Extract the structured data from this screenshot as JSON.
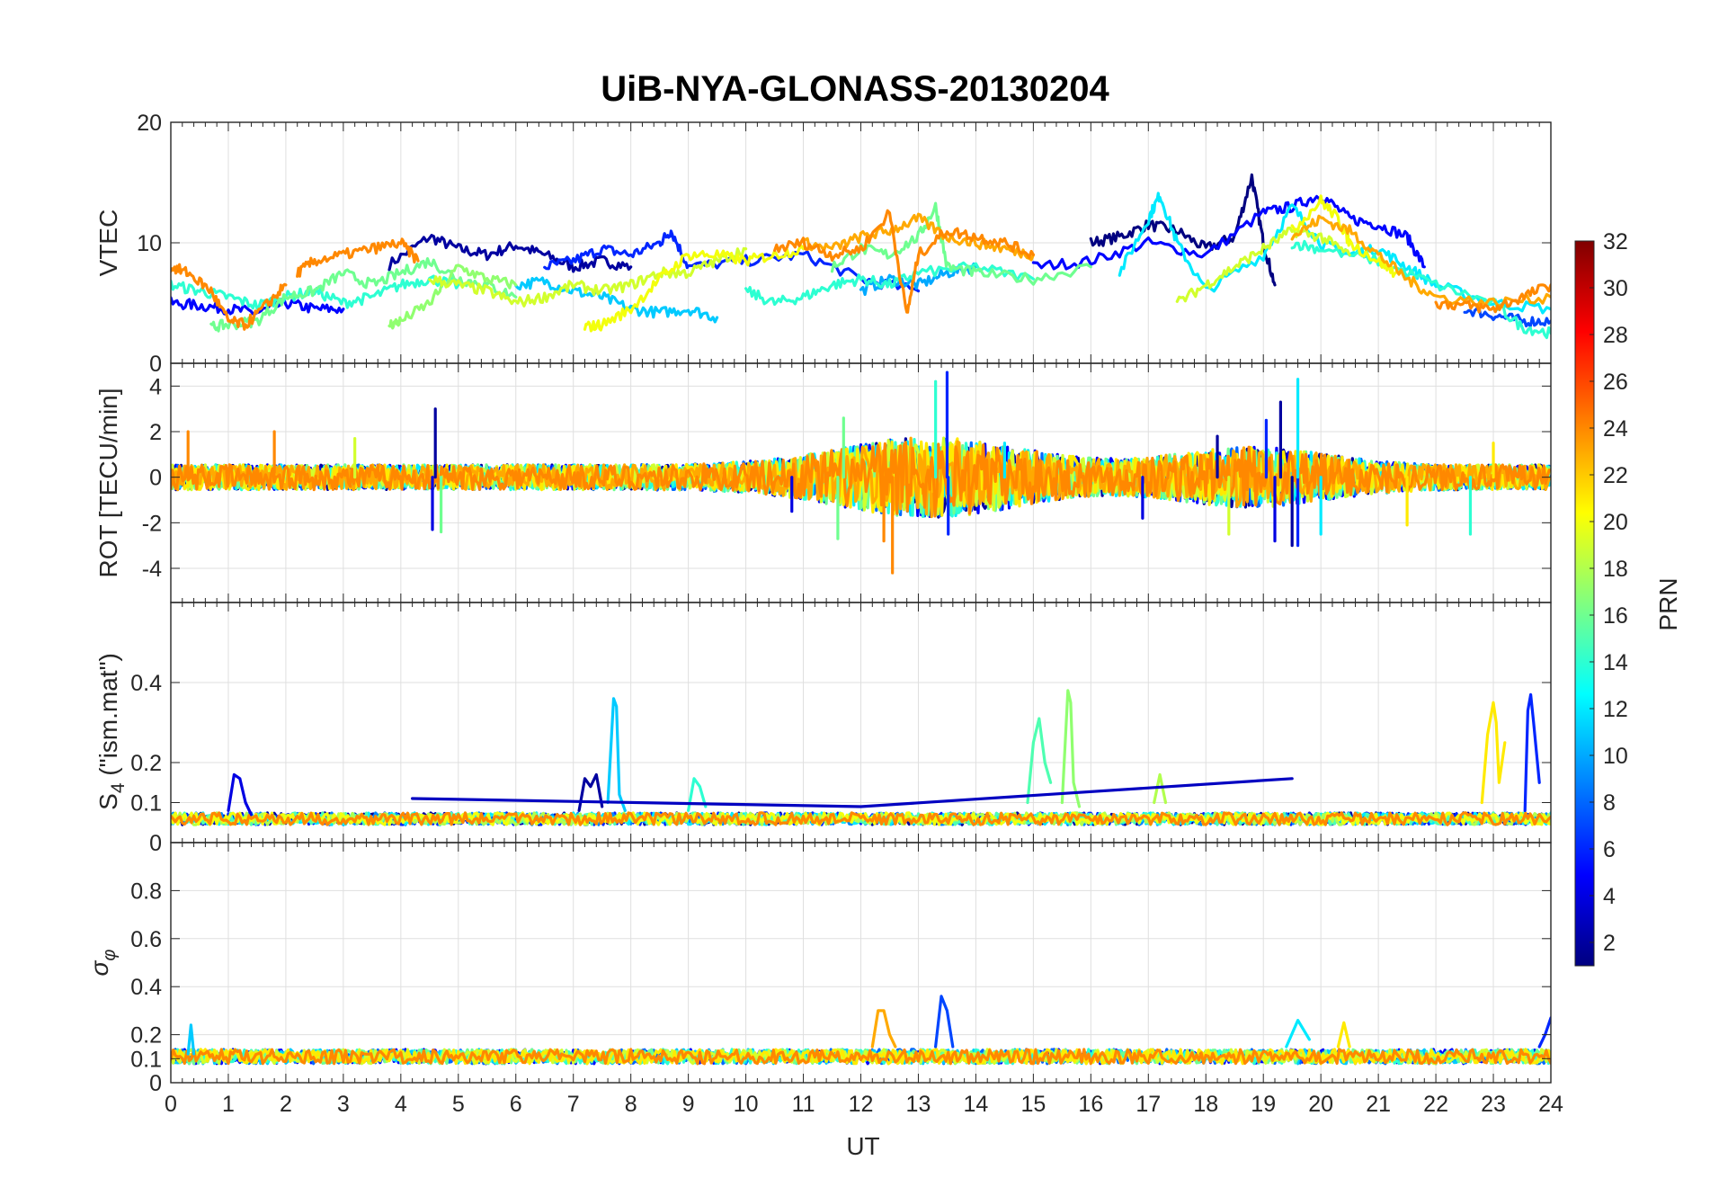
{
  "chart_data": {
    "type": "line",
    "title": "UiB-NYA-GLONASS-20130204",
    "xlabel": "UT",
    "xlim": [
      0,
      24
    ],
    "xticks": [
      0,
      1,
      2,
      3,
      4,
      5,
      6,
      7,
      8,
      9,
      10,
      11,
      12,
      13,
      14,
      15,
      16,
      17,
      18,
      19,
      20,
      21,
      22,
      23,
      24
    ],
    "grid": true,
    "colorbar": {
      "label": "PRN",
      "lim": [
        1,
        32
      ],
      "ticks": [
        2,
        4,
        6,
        8,
        10,
        12,
        14,
        16,
        18,
        20,
        22,
        24,
        26,
        28,
        30,
        32
      ],
      "colormap": "jet"
    },
    "panels": [
      {
        "id": "vtec",
        "ylabel": "VTEC",
        "ylim": [
          0,
          20
        ],
        "yticks": [
          0,
          10,
          20
        ],
        "series": [
          {
            "prn": 2,
            "x": [
              3.8,
              4.5,
              5.0,
              5.5,
              6.0,
              6.5,
              7.0,
              7.5,
              8.0
            ],
            "y": [
              8.2,
              10.5,
              9.5,
              9.0,
              9.8,
              9.0,
              8.0,
              8.5,
              8.0
            ]
          },
          {
            "prn": 1,
            "x": [
              16.0,
              16.5,
              17.0,
              17.5,
              18.0,
              18.5,
              18.8,
              19.0,
              19.2
            ],
            "y": [
              10.0,
              10.5,
              11.5,
              11.0,
              9.5,
              10.5,
              15.5,
              10.0,
              6.5
            ]
          },
          {
            "prn": 5,
            "x": [
              0.0,
              0.5,
              1.0,
              1.5,
              2.0,
              2.5,
              3.0
            ],
            "y": [
              5.0,
              4.8,
              4.5,
              4.2,
              5.0,
              4.5,
              4.5
            ]
          },
          {
            "prn": 5,
            "x": [
              15.0,
              16.0,
              17.0,
              18.0,
              19.0,
              19.5,
              20.0,
              20.5,
              21.0,
              21.5,
              21.8
            ],
            "y": [
              8.0,
              8.5,
              10.0,
              9.0,
              12.5,
              13.0,
              14.0,
              12.0,
              11.5,
              10.5,
              8.0
            ]
          },
          {
            "prn": 6,
            "x": [
              6.5,
              7.0,
              7.5,
              8.0,
              8.5,
              8.7,
              9.0,
              10.0,
              11.0,
              12.0,
              13.0
            ],
            "y": [
              8.0,
              8.5,
              9.5,
              9.0,
              10.0,
              11.0,
              8.0,
              8.5,
              9.0,
              7.0,
              6.0
            ]
          },
          {
            "prn": 7,
            "x": [
              22.5,
              23.0,
              23.5,
              24.0
            ],
            "y": [
              4.5,
              4.0,
              3.5,
              3.5
            ]
          },
          {
            "prn": 10,
            "x": [
              12.0,
              12.5,
              13.0,
              13.5,
              14.0
            ],
            "y": [
              6.0,
              7.0,
              6.5,
              7.5,
              8.0
            ]
          },
          {
            "prn": 11,
            "x": [
              6.0,
              6.5,
              7.0,
              7.5,
              8.0,
              8.5,
              9.0,
              9.5
            ],
            "y": [
              6.5,
              6.8,
              6.0,
              5.5,
              4.5,
              4.2,
              4.5,
              3.8
            ]
          },
          {
            "prn": 12,
            "x": [
              16.5,
              17.0,
              17.2,
              17.5,
              18.0,
              19.0,
              19.5,
              20.0,
              20.5,
              21.0,
              21.5,
              22.0,
              23.0,
              24.0
            ],
            "y": [
              7.5,
              12.0,
              14.0,
              10.0,
              6.0,
              9.0,
              13.0,
              10.0,
              9.0,
              9.5,
              8.0,
              6.5,
              5.0,
              4.5
            ]
          },
          {
            "prn": 14,
            "x": [
              0.0,
              0.5,
              1.0,
              1.5,
              2.0,
              2.5,
              3.0,
              3.5,
              4.0,
              4.5,
              5.0
            ],
            "y": [
              6.5,
              6.0,
              5.5,
              4.8,
              5.5,
              6.0,
              5.0,
              5.5,
              6.5,
              7.0,
              6.5
            ]
          },
          {
            "prn": 14,
            "x": [
              10.0,
              10.5,
              11.0,
              11.5,
              12.0,
              12.5,
              13.0,
              14.0,
              15.0
            ],
            "y": [
              6.0,
              5.0,
              5.5,
              6.5,
              7.0,
              6.5,
              7.5,
              8.0,
              7.0
            ]
          },
          {
            "prn": 14,
            "x": [
              19.5,
              20.0,
              21.0,
              22.0,
              23.0,
              23.5,
              24.0
            ],
            "y": [
              10.0,
              9.5,
              8.5,
              6.5,
              5.0,
              3.0,
              2.5
            ]
          },
          {
            "prn": 16,
            "x": [
              0.7,
              1.0,
              1.5,
              2.0,
              2.5,
              3.0,
              3.5,
              4.0,
              4.5,
              5.0,
              5.5,
              6.0
            ],
            "y": [
              3.0,
              3.2,
              3.5,
              5.5,
              6.0,
              7.5,
              6.5,
              7.5,
              8.5,
              7.0,
              6.5,
              5.5
            ]
          },
          {
            "prn": 16,
            "x": [
              11.5,
              12.0,
              12.5,
              13.0,
              13.3,
              13.5,
              14.0,
              15.0,
              16.0
            ],
            "y": [
              8.0,
              9.5,
              9.0,
              10.5,
              13.0,
              8.0,
              7.5,
              7.0,
              8.0
            ]
          },
          {
            "prn": 17,
            "x": [
              3.8,
              4.0,
              4.5,
              5.0,
              5.5,
              6.0
            ],
            "y": [
              3.2,
              3.5,
              5.0,
              8.0,
              7.0,
              6.5
            ]
          },
          {
            "prn": 19,
            "x": [
              4.5,
              5.0,
              5.5,
              6.0,
              6.5,
              7.0,
              7.5,
              8.0,
              8.5,
              9.0,
              9.5,
              10.0
            ],
            "y": [
              7.0,
              6.5,
              6.0,
              5.0,
              5.5,
              6.5,
              6.0,
              6.5,
              7.5,
              7.5,
              8.5,
              9.5
            ]
          },
          {
            "prn": 19,
            "x": [
              17.5,
              18.0,
              18.5,
              19.0,
              19.5,
              20.0,
              20.5
            ],
            "y": [
              5.0,
              6.5,
              8.0,
              9.5,
              11.0,
              10.5,
              9.0
            ]
          },
          {
            "prn": 20,
            "x": [
              7.2,
              7.5,
              8.0,
              8.5,
              9.0,
              9.5,
              10.0,
              10.5,
              11.0
            ],
            "y": [
              3.0,
              3.2,
              4.5,
              7.0,
              9.0,
              9.0,
              8.5,
              9.0,
              9.5
            ]
          },
          {
            "prn": 20,
            "x": [
              19.5,
              20.0,
              20.3,
              20.5,
              21.0,
              21.3
            ],
            "y": [
              11.0,
              13.5,
              12.0,
              10.0,
              8.5,
              7.5
            ]
          },
          {
            "prn": 23,
            "x": [
              11.0,
              11.5,
              12.0,
              12.5,
              13.0,
              13.5,
              14.0,
              14.5,
              15.0
            ],
            "y": [
              10.0,
              9.5,
              10.5,
              11.0,
              12.0,
              10.5,
              10.0,
              9.5,
              9.0
            ]
          },
          {
            "prn": 23,
            "x": [
              19.5,
              20.0,
              20.5,
              21.0,
              21.5,
              22.0,
              23.0,
              24.0
            ],
            "y": [
              10.5,
              12.0,
              11.0,
              9.0,
              7.0,
              5.5,
              5.0,
              5.5
            ]
          },
          {
            "prn": 24,
            "x": [
              0.0,
              0.3,
              0.7,
              1.0,
              1.3,
              1.7,
              2.0
            ],
            "y": [
              8.0,
              7.5,
              6.0,
              3.5,
              3.2,
              5.0,
              6.5
            ]
          },
          {
            "prn": 24,
            "x": [
              2.2,
              2.5,
              3.0,
              3.5,
              4.0,
              4.3
            ],
            "y": [
              7.5,
              8.5,
              9.0,
              9.5,
              10.0,
              8.5
            ]
          },
          {
            "prn": 24,
            "x": [
              10.5,
              11.0,
              11.5,
              12.0,
              12.5,
              12.8,
              13.0,
              13.5,
              14.0,
              14.5,
              15.0
            ],
            "y": [
              9.5,
              10.0,
              9.0,
              9.5,
              12.5,
              4.0,
              9.0,
              11.0,
              10.5,
              10.0,
              9.0
            ]
          },
          {
            "prn": 24,
            "x": [
              22.0,
              22.5,
              23.0,
              23.5,
              24.0
            ],
            "y": [
              5.0,
              4.8,
              4.5,
              5.5,
              6.5
            ]
          }
        ]
      },
      {
        "id": "rot",
        "ylabel": "ROT [TECU/min]",
        "ylim": [
          -5.5,
          5
        ],
        "yticks": [
          -4,
          -2,
          0,
          2,
          4
        ],
        "noise_band": 0.55,
        "series": [
          {
            "prn": 2,
            "x": [
              4.6,
              18.2,
              19.3,
              19.5
            ],
            "y": [
              3.0,
              1.8,
              3.3,
              -3.0
            ]
          },
          {
            "prn": 4,
            "x": [
              4.55,
              10.8,
              16.9,
              19.2
            ],
            "y": [
              -2.3,
              -1.5,
              -1.8,
              -2.8
            ]
          },
          {
            "prn": 6,
            "x": [
              13.5,
              13.52,
              19.05,
              19.6
            ],
            "y": [
              4.6,
              -2.5,
              2.5,
              -3.0
            ]
          },
          {
            "prn": 12,
            "x": [
              19.6,
              20.0,
              14.5
            ],
            "y": [
              4.3,
              -2.5,
              1.5
            ]
          },
          {
            "prn": 14,
            "x": [
              13.3,
              22.6
            ],
            "y": [
              4.2,
              -2.5
            ]
          },
          {
            "prn": 16,
            "x": [
              11.7,
              11.6,
              4.7
            ],
            "y": [
              2.6,
              -2.7,
              -2.4
            ]
          },
          {
            "prn": 19,
            "x": [
              3.2,
              18.4
            ],
            "y": [
              1.7,
              -2.5
            ]
          },
          {
            "prn": 21,
            "x": [
              23.0,
              21.5
            ],
            "y": [
              1.5,
              -2.1
            ]
          },
          {
            "prn": 24,
            "x": [
              0.3,
              1.8,
              12.55,
              12.4
            ],
            "y": [
              2.0,
              2.0,
              -4.2,
              -2.8
            ]
          }
        ]
      },
      {
        "id": "s4",
        "ylabel": "S4 (\"ism.mat\")",
        "ylim": [
          0,
          0.6
        ],
        "yticks": [
          0,
          0.1,
          0.2,
          0.4
        ],
        "baseline": 0.055,
        "series": [
          {
            "prn": 4,
            "x": [
              1.0,
              1.1,
              1.2,
              1.3,
              1.4
            ],
            "y": [
              0.08,
              0.17,
              0.16,
              0.1,
              0.07
            ]
          },
          {
            "prn": 2,
            "x": [
              7.1,
              7.2,
              7.3,
              7.4,
              7.5
            ],
            "y": [
              0.08,
              0.16,
              0.14,
              0.17,
              0.09
            ]
          },
          {
            "prn": 11,
            "x": [
              7.6,
              7.7,
              7.75,
              7.8,
              7.9
            ],
            "y": [
              0.1,
              0.36,
              0.34,
              0.12,
              0.08
            ]
          },
          {
            "prn": 14,
            "x": [
              9.0,
              9.1,
              9.2,
              9.3
            ],
            "y": [
              0.08,
              0.16,
              0.14,
              0.09
            ]
          },
          {
            "prn": 15,
            "x": [
              14.9,
              15.0,
              15.1,
              15.2,
              15.3
            ],
            "y": [
              0.1,
              0.25,
              0.31,
              0.2,
              0.15
            ]
          },
          {
            "prn": 17,
            "x": [
              15.5,
              15.6,
              15.65,
              15.7,
              15.8
            ],
            "y": [
              0.1,
              0.38,
              0.35,
              0.15,
              0.09
            ]
          },
          {
            "prn": 18,
            "x": [
              17.1,
              17.2,
              17.3
            ],
            "y": [
              0.1,
              0.17,
              0.1
            ]
          },
          {
            "prn": 21,
            "x": [
              22.8,
              22.9,
              23.0,
              23.05,
              23.1,
              23.2
            ],
            "y": [
              0.1,
              0.27,
              0.35,
              0.3,
              0.15,
              0.25
            ]
          },
          {
            "prn": 6,
            "x": [
              23.55,
              23.6,
              23.65,
              23.7,
              23.8
            ],
            "y": [
              0.08,
              0.33,
              0.37,
              0.3,
              0.15
            ]
          },
          {
            "prn": 3,
            "x": [
              4.2,
              12.0,
              19.5
            ],
            "y": [
              0.11,
              0.09,
              0.16
            ]
          }
        ]
      },
      {
        "id": "sigma",
        "ylabel": "σ_φ",
        "ylim": [
          0,
          1
        ],
        "yticks": [
          0,
          0.1,
          0.2,
          0.4,
          0.6,
          0.8
        ],
        "baseline": 0.1,
        "series": [
          {
            "prn": 7,
            "x": [
              13.3,
              13.4,
              13.5,
              13.6
            ],
            "y": [
              0.15,
              0.36,
              0.3,
              0.15
            ]
          },
          {
            "prn": 23,
            "x": [
              12.2,
              12.3,
              12.4,
              12.5,
              12.6
            ],
            "y": [
              0.15,
              0.3,
              0.3,
              0.2,
              0.15
            ]
          },
          {
            "prn": 12,
            "x": [
              19.4,
              19.6,
              19.8
            ],
            "y": [
              0.15,
              0.26,
              0.18
            ]
          },
          {
            "prn": 6,
            "x": [
              23.8,
              23.9,
              24.0
            ],
            "y": [
              0.15,
              0.2,
              0.27
            ]
          },
          {
            "prn": 21,
            "x": [
              20.3,
              20.4,
              20.5
            ],
            "y": [
              0.15,
              0.25,
              0.15
            ]
          },
          {
            "prn": 11,
            "x": [
              0.3,
              0.35,
              0.4
            ],
            "y": [
              0.12,
              0.24,
              0.12
            ]
          }
        ]
      }
    ]
  }
}
